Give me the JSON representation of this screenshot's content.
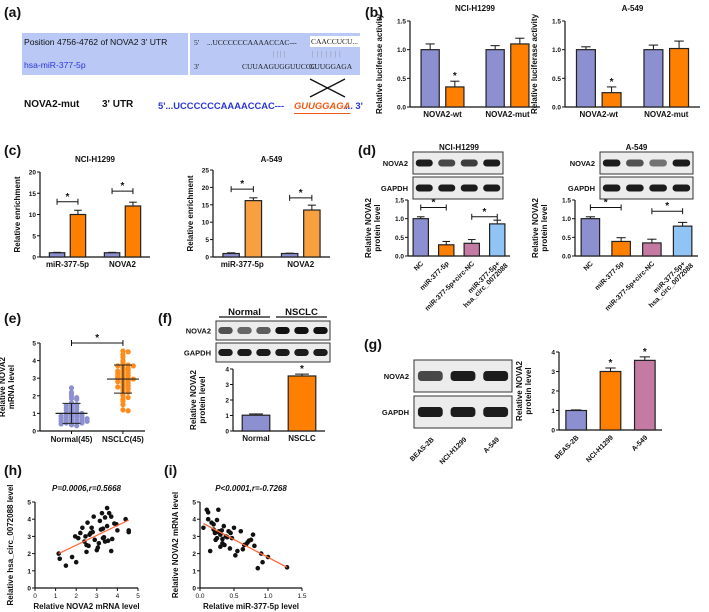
{
  "panel_labels": {
    "a": "(a)",
    "b": "(b)",
    "c": "(c)",
    "d": "(d)",
    "e": "(e)",
    "f": "(f)",
    "g": "(g)",
    "h": "(h)",
    "i": "(i)"
  },
  "panel_a": {
    "row1_label": "Position 4756-4762 of NOVA2 3' UTR",
    "row2_label": "hsa-miR-377-5p",
    "row1_end": "5'",
    "row1_seq": "...UCCCCCCAAAACCAC---",
    "row1_site": "CAACCUCU...",
    "pairs_1": "||||",
    "pairs_2": "|||||||",
    "row2_end": "3'",
    "row2_seq": "CUUAAGUGGUUCCC",
    "row2_site": "GUUGGAGA",
    "mut_label": "NOVA2-mut",
    "mut_utr": "3' UTR",
    "mut_seq": "5'...UCCCCCCAAAACCAC---",
    "mut_site": "GUUGGAGA",
    "mut_end": "... 3'",
    "colors": {
      "box": "#b9c8f5",
      "blue": "#2b35d8",
      "orange": "#f05a12"
    }
  },
  "blots": {
    "d1": {
      "rows": [
        {
          "label": "NOVA2",
          "bands": [
            0.95,
            0.75,
            0.8,
            0.95
          ]
        },
        {
          "label": "GAPDH",
          "bands": [
            0.95,
            0.95,
            0.95,
            0.95
          ]
        }
      ]
    },
    "d2": {
      "rows": [
        {
          "label": "NOVA2",
          "bands": [
            0.95,
            0.7,
            0.55,
            0.95
          ]
        },
        {
          "label": "GAPDH",
          "bands": [
            0.95,
            0.95,
            0.95,
            0.95
          ]
        }
      ]
    },
    "f": {
      "groups": [
        "Normal",
        "NSCLC"
      ],
      "rows": [
        {
          "label": "NOVA2",
          "bands": [
            0.7,
            0.6,
            0.65,
            1,
            1,
            1
          ]
        },
        {
          "label": "GAPDH",
          "bands": [
            0.95,
            0.95,
            0.95,
            0.95,
            0.95,
            0.95
          ]
        }
      ]
    },
    "g": {
      "rows": [
        {
          "label": "NOVA2",
          "bands": [
            0.75,
            0.95,
            0.95
          ]
        },
        {
          "label": "GAPDH",
          "bands": [
            0.95,
            0.95,
            0.95
          ]
        }
      ],
      "lanes": [
        "BEAS-2B",
        "NCI-H1299",
        "A-549"
      ]
    }
  },
  "chart_data": [
    {
      "id": "b1",
      "type": "bar",
      "title": "NCI-H1299",
      "ylabel": [
        "Relative luciferase activity"
      ],
      "ylim": [
        0,
        1.5
      ],
      "yticks": [
        "0.0",
        "0.5",
        "1.0",
        "1.5"
      ],
      "ytick_values": [
        0,
        0.5,
        1,
        1.5
      ],
      "categories": [
        [
          "NOVA2-wt"
        ],
        [
          "NOVA2-mut"
        ]
      ],
      "series": [
        {
          "color": "#8c8fd0",
          "values": [
            1.0,
            1.0
          ],
          "errors": [
            0.1,
            0.07
          ]
        },
        {
          "color": "#ff8000",
          "values": [
            0.35,
            1.1
          ],
          "errors": [
            0.1,
            0.1
          ]
        }
      ],
      "stars": [
        [
          0,
          1
        ]
      ],
      "brackets": [],
      "symbol": "*"
    },
    {
      "id": "b2",
      "type": "bar",
      "title": "A-549",
      "ylabel": [
        "Relative luciferase activity"
      ],
      "ylim": [
        0,
        1.5
      ],
      "yticks": [
        "0.0",
        "0.5",
        "1.0",
        "1.5"
      ],
      "ytick_values": [
        0,
        0.5,
        1,
        1.5
      ],
      "categories": [
        [
          "NOVA2-wt"
        ],
        [
          "NOVA2-mut"
        ]
      ],
      "series": [
        {
          "color": "#8c8fd0",
          "values": [
            1.0,
            1.0
          ],
          "errors": [
            0.05,
            0.08
          ]
        },
        {
          "color": "#ff8000",
          "values": [
            0.25,
            1.02
          ],
          "errors": [
            0.1,
            0.13
          ]
        }
      ],
      "stars": [
        [
          0,
          1
        ]
      ],
      "brackets": [],
      "symbol": "*"
    },
    {
      "id": "c1",
      "type": "bar",
      "title": "NCI-H1299",
      "ylabel": [
        "Relative enrichment"
      ],
      "ylim": [
        0,
        20
      ],
      "yticks": [
        "0",
        "5",
        "10",
        "15",
        "20"
      ],
      "ytick_values": [
        0,
        5,
        10,
        15,
        20
      ],
      "categories": [
        [
          "miR-377-5p"
        ],
        [
          "NOVA2"
        ]
      ],
      "series": [
        {
          "color": "#8c8fd0",
          "values": [
            1.0,
            1.0
          ],
          "errors": [
            0.1,
            0.1
          ]
        },
        {
          "color": "#ff8000",
          "values": [
            10.0,
            12.0
          ],
          "errors": [
            1.0,
            0.9
          ]
        }
      ],
      "stars": [],
      "brackets": [
        {
          "cat": 0,
          "y": 13.0
        },
        {
          "cat": 1,
          "y": 15.5
        }
      ],
      "symbol": "*"
    },
    {
      "id": "c2",
      "type": "bar",
      "title": "A-549",
      "ylabel": [
        "Relative enrichment"
      ],
      "ylim": [
        0,
        25
      ],
      "yticks": [
        "0",
        "5",
        "10",
        "15",
        "20",
        "25"
      ],
      "ytick_values": [
        0,
        5,
        10,
        15,
        20,
        25
      ],
      "categories": [
        [
          "miR-377-5p"
        ],
        [
          "NOVA2"
        ]
      ],
      "series": [
        {
          "color": "#8c8fd0",
          "values": [
            1.0,
            1.0
          ],
          "errors": [
            0.2,
            0.1
          ]
        },
        {
          "color": "#f8a040",
          "values": [
            16.2,
            13.5
          ],
          "errors": [
            0.8,
            1.4
          ]
        }
      ],
      "stars": [],
      "brackets": [
        {
          "cat": 0,
          "y": 19.5
        },
        {
          "cat": 1,
          "y": 17.0
        }
      ],
      "symbol": "*"
    },
    {
      "id": "d1",
      "type": "bar",
      "title": "NCI-H1299",
      "ylabel": [
        "Relative NOVA2",
        "protein level"
      ],
      "ylim": [
        0,
        1.5
      ],
      "yticks": [
        "0.0",
        "0.5",
        "1.0",
        "1.5"
      ],
      "ytick_values": [
        0,
        0.5,
        1,
        1.5
      ],
      "rotate_labels": true,
      "categories": [
        [
          "NC"
        ],
        [
          "miR-377-5p"
        ],
        [
          "miR-377-5p+circ-NC"
        ],
        [
          "miR-377-5p+",
          "hsa_circ_0072088"
        ]
      ],
      "series": [
        {
          "colors": [
            "#8c8fd0",
            "#ff8000",
            "#c47aa2",
            "#8fc4f5"
          ],
          "values": [
            1.0,
            0.3,
            0.34,
            0.86
          ],
          "errors": [
            0.05,
            0.09,
            0.1,
            0.1
          ]
        }
      ],
      "stars": [],
      "pair_brackets": [
        {
          "from": 0,
          "to": 1,
          "y": 1.3
        },
        {
          "from": 2,
          "to": 3,
          "y": 1.05
        }
      ],
      "symbol": "*"
    },
    {
      "id": "d2",
      "type": "bar",
      "title": "A-549",
      "ylabel": [
        "Relative NOVA2",
        "protein level"
      ],
      "ylim": [
        0,
        1.5
      ],
      "yticks": [
        "0.0",
        "0.5",
        "1.0",
        "1.5"
      ],
      "ytick_values": [
        0,
        0.5,
        1,
        1.5
      ],
      "rotate_labels": true,
      "categories": [
        [
          "NC"
        ],
        [
          "miR-377-5p"
        ],
        [
          "miR-377-5p+circ-NC"
        ],
        [
          "miR-377-5p+",
          "hsa_circ_0072088"
        ]
      ],
      "series": [
        {
          "colors": [
            "#8c8fd0",
            "#ff8000",
            "#c47aa2",
            "#8fc4f5"
          ],
          "values": [
            1.0,
            0.39,
            0.35,
            0.8
          ],
          "errors": [
            0.05,
            0.1,
            0.1,
            0.1
          ]
        }
      ],
      "stars": [],
      "pair_brackets": [
        {
          "from": 0,
          "to": 1,
          "y": 1.3
        },
        {
          "from": 2,
          "to": 3,
          "y": 1.2
        }
      ],
      "symbol": "*"
    },
    {
      "id": "e",
      "type": "scatter",
      "ylabel": [
        "Relative NOVA2",
        "mRNA level"
      ],
      "ylim": [
        0,
        5
      ],
      "yticks": [
        "0",
        "1",
        "2",
        "3",
        "4",
        "5"
      ],
      "ytick_values": [
        0,
        1,
        2,
        3,
        4,
        5
      ],
      "categories": [
        "Normal(45)",
        "NSCLC(45)"
      ],
      "groups": [
        {
          "color": "#8c8fd0",
          "mean": 1.0,
          "sd": 0.57,
          "values": [
            2.2,
            2.45,
            2.15,
            2.0,
            1.9,
            1.85,
            1.8,
            1.6,
            1.55,
            1.5,
            1.45,
            1.4,
            1.35,
            1.3,
            1.25,
            1.2,
            1.15,
            1.1,
            1.05,
            1.0,
            1.0,
            0.95,
            0.9,
            0.9,
            0.85,
            0.85,
            0.8,
            0.8,
            0.75,
            0.75,
            0.7,
            0.7,
            0.65,
            0.65,
            0.6,
            0.6,
            0.55,
            0.55,
            0.5,
            0.5,
            0.45,
            0.45,
            0.4,
            0.35,
            0.3
          ]
        },
        {
          "color": "#ff8c1a",
          "mean": 2.95,
          "sd": 0.8,
          "values": [
            4.55,
            4.5,
            4.35,
            4.2,
            4.0,
            3.9,
            3.8,
            3.75,
            3.7,
            3.7,
            3.6,
            3.55,
            3.5,
            3.45,
            3.4,
            3.35,
            3.3,
            3.25,
            3.2,
            3.15,
            3.1,
            3.05,
            3.0,
            3.0,
            2.95,
            2.9,
            2.85,
            2.8,
            2.75,
            2.7,
            2.6,
            2.55,
            2.5,
            2.45,
            2.4,
            2.3,
            2.2,
            2.1,
            2.0,
            1.9,
            1.8,
            1.7,
            1.5,
            1.2,
            1.15
          ]
        }
      ],
      "bracket_y": 5.0,
      "symbol": "*"
    },
    {
      "id": "f",
      "type": "bar",
      "ylabel": [
        "Relative NOVA2",
        "protein level"
      ],
      "ylim": [
        0,
        4
      ],
      "yticks": [
        "0",
        "1",
        "2",
        "3",
        "4"
      ],
      "ytick_values": [
        0,
        1,
        2,
        3,
        4
      ],
      "categories": [
        [
          "Normal"
        ],
        [
          "NSCLC"
        ]
      ],
      "series": [
        {
          "colors": [
            "#8c8fd0",
            "#ff8000"
          ],
          "values": [
            1.02,
            3.55
          ],
          "errors": [
            0.08,
            0.12
          ]
        }
      ],
      "stars": [
        [
          1,
          0
        ]
      ],
      "brackets": [],
      "symbol": "*"
    },
    {
      "id": "g",
      "type": "bar",
      "ylabel": [
        "Relative NOVA2",
        "protein level"
      ],
      "ylim": [
        0,
        4
      ],
      "yticks": [
        "0",
        "1",
        "2",
        "3",
        "4"
      ],
      "ytick_values": [
        0,
        1,
        2,
        3,
        4
      ],
      "rotate_labels": true,
      "categories": [
        [
          "BEAS-2B"
        ],
        [
          "NCI-H1299"
        ],
        [
          "A-549"
        ]
      ],
      "series": [
        {
          "colors": [
            "#8c8fd0",
            "#ff8000",
            "#c47aa2"
          ],
          "values": [
            1.0,
            3.0,
            3.57
          ],
          "errors": [
            0.03,
            0.18,
            0.18
          ]
        }
      ],
      "stars": [
        [
          1,
          0
        ],
        [
          2,
          0
        ]
      ],
      "brackets": [],
      "symbol": "*"
    },
    {
      "id": "h",
      "type": "scatter_fit",
      "title": "P=0.0006,r=0.5668",
      "xlabel": "Relative NOVA2 mRNA level",
      "ylabel": [
        "Relative hsa_circ_0072088 level"
      ],
      "xlim": [
        0,
        5
      ],
      "ylim": [
        0,
        5
      ],
      "xticks": [
        "0",
        "1",
        "2",
        "3",
        "4",
        "5"
      ],
      "xtick_values": [
        0,
        1,
        2,
        3,
        4,
        5
      ],
      "yticks": [
        "0",
        "1",
        "2",
        "3",
        "4",
        "5"
      ],
      "ytick_values": [
        0,
        1,
        2,
        3,
        4,
        5
      ],
      "fit": [
        [
          1.15,
          2.0
        ],
        [
          4.55,
          3.95
        ]
      ],
      "fit_color": "#ff6a3a",
      "points": [
        [
          1.15,
          2.0
        ],
        [
          1.2,
          1.7
        ],
        [
          1.5,
          1.3
        ],
        [
          1.8,
          1.8
        ],
        [
          1.95,
          3.0
        ],
        [
          2.0,
          1.5
        ],
        [
          2.1,
          2.9
        ],
        [
          2.2,
          3.2
        ],
        [
          2.3,
          3.5
        ],
        [
          2.4,
          2.7
        ],
        [
          2.45,
          3.0
        ],
        [
          2.5,
          2.5
        ],
        [
          2.5,
          2.1
        ],
        [
          2.55,
          3.8
        ],
        [
          2.6,
          2.45
        ],
        [
          2.65,
          3.1
        ],
        [
          2.7,
          3.2
        ],
        [
          2.75,
          3.5
        ],
        [
          2.8,
          3.25
        ],
        [
          2.85,
          4.15
        ],
        [
          2.9,
          2.8
        ],
        [
          3.0,
          2.2
        ],
        [
          3.05,
          2.35
        ],
        [
          3.1,
          2.6
        ],
        [
          3.15,
          3.9
        ],
        [
          3.2,
          3.4
        ],
        [
          3.25,
          4.35
        ],
        [
          3.3,
          3.45
        ],
        [
          3.35,
          2.95
        ],
        [
          3.4,
          2.7
        ],
        [
          3.4,
          4.1
        ],
        [
          3.5,
          4.65
        ],
        [
          3.5,
          3.6
        ],
        [
          3.55,
          2.75
        ],
        [
          3.6,
          4.35
        ],
        [
          3.7,
          2.15
        ],
        [
          3.7,
          4.15
        ],
        [
          3.75,
          2.85
        ],
        [
          3.85,
          3.75
        ],
        [
          3.95,
          3.7
        ],
        [
          4.0,
          3.35
        ],
        [
          4.4,
          4.0
        ],
        [
          4.55,
          3.35
        ],
        [
          4.55,
          3.25
        ],
        [
          3.3,
          2.9
        ]
      ]
    },
    {
      "id": "i",
      "type": "scatter_fit",
      "title": "P<0.0001,r=-0.7268",
      "xlabel": "Relative miR-377-5p level",
      "ylabel": [
        "Relative NOVA2 mRNA level"
      ],
      "xlim": [
        0,
        1.5
      ],
      "ylim": [
        0,
        5
      ],
      "xticks": [
        "0.0",
        "0.5",
        "1.0",
        "1.5"
      ],
      "xtick_values": [
        0,
        0.5,
        1,
        1.5
      ],
      "yticks": [
        "0",
        "1",
        "2",
        "3",
        "4",
        "5"
      ],
      "ytick_values": [
        0,
        1,
        2,
        3,
        4,
        5
      ],
      "fit": [
        [
          0.05,
          3.75
        ],
        [
          1.28,
          1.2
        ]
      ],
      "fit_color": "#ff6a3a",
      "points": [
        [
          0.05,
          3.5
        ],
        [
          0.1,
          4.55
        ],
        [
          0.12,
          4.4
        ],
        [
          0.12,
          4.0
        ],
        [
          0.15,
          2.15
        ],
        [
          0.17,
          3.8
        ],
        [
          0.2,
          3.7
        ],
        [
          0.2,
          3.4
        ],
        [
          0.22,
          3.2
        ],
        [
          0.23,
          2.8
        ],
        [
          0.25,
          3.95
        ],
        [
          0.25,
          2.9
        ],
        [
          0.27,
          4.55
        ],
        [
          0.28,
          3.3
        ],
        [
          0.3,
          2.4
        ],
        [
          0.3,
          3.1
        ],
        [
          0.32,
          3.35
        ],
        [
          0.33,
          2.6
        ],
        [
          0.35,
          3.6
        ],
        [
          0.36,
          2.5
        ],
        [
          0.38,
          3.0
        ],
        [
          0.4,
          2.95
        ],
        [
          0.42,
          3.3
        ],
        [
          0.44,
          2.3
        ],
        [
          0.45,
          3.2
        ],
        [
          0.47,
          2.9
        ],
        [
          0.5,
          3.5
        ],
        [
          0.52,
          1.9
        ],
        [
          0.55,
          2.15
        ],
        [
          0.6,
          3.3
        ],
        [
          0.63,
          2.25
        ],
        [
          0.65,
          2.5
        ],
        [
          0.68,
          2.55
        ],
        [
          0.7,
          2.65
        ],
        [
          0.72,
          2.75
        ],
        [
          0.75,
          2.8
        ],
        [
          0.78,
          3.1
        ],
        [
          0.8,
          2.45
        ],
        [
          0.85,
          1.15
        ],
        [
          0.9,
          2.0
        ],
        [
          0.92,
          1.5
        ],
        [
          1.0,
          1.8
        ],
        [
          1.28,
          1.2
        ],
        [
          0.27,
          3.25
        ],
        [
          0.33,
          2.85
        ]
      ]
    }
  ]
}
